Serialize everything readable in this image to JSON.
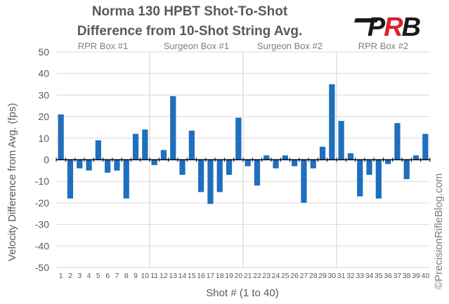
{
  "logo": {
    "letters": "PRB",
    "colors": {
      "dark": "#1a1a1a",
      "accent": "#d9232d"
    }
  },
  "watermark": "©PrecisionRifleBlog.com",
  "colors": {
    "bar": "#1f6fbf",
    "text": "#595959",
    "grid": "#d9d9d9",
    "axis": "#000000"
  },
  "chart_data": {
    "type": "bar",
    "title": [
      "Norma 130 HPBT Shot-To-Shot",
      "Difference from 10-Shot String Avg."
    ],
    "xlabel": "Shot # (1 to 40)",
    "ylabel": "Velocity Difference from Avg. (fps)",
    "ylim": [
      -50,
      50
    ],
    "ytick_step": 10,
    "grid": true,
    "categories": [
      "1",
      "2",
      "3",
      "4",
      "5",
      "6",
      "7",
      "8",
      "9",
      "10",
      "11",
      "12",
      "13",
      "14",
      "15",
      "16",
      "17",
      "18",
      "19",
      "20",
      "21",
      "22",
      "23",
      "24",
      "25",
      "26",
      "27",
      "28",
      "29",
      "30",
      "31",
      "32",
      "33",
      "34",
      "35",
      "36",
      "37",
      "38",
      "39",
      "40"
    ],
    "values": [
      21,
      -18,
      -4,
      -5,
      9,
      -6,
      -5,
      -18,
      12,
      14,
      -2.5,
      4.5,
      29.5,
      -7,
      13.5,
      -15,
      -20.5,
      -15,
      -7,
      19.5,
      -3,
      -12,
      2,
      -4,
      2,
      -3,
      -20,
      -4,
      6,
      35,
      18,
      3,
      -17,
      -7,
      -18,
      -2,
      17,
      -9,
      2,
      12
    ],
    "groups": [
      {
        "label": "RPR Box #1",
        "start": 1,
        "end": 10
      },
      {
        "label": "Surgeon Box #1",
        "start": 11,
        "end": 20
      },
      {
        "label": "Surgeon Box #2",
        "start": 21,
        "end": 30
      },
      {
        "label": "RPR Box #2",
        "start": 31,
        "end": 40
      }
    ]
  }
}
